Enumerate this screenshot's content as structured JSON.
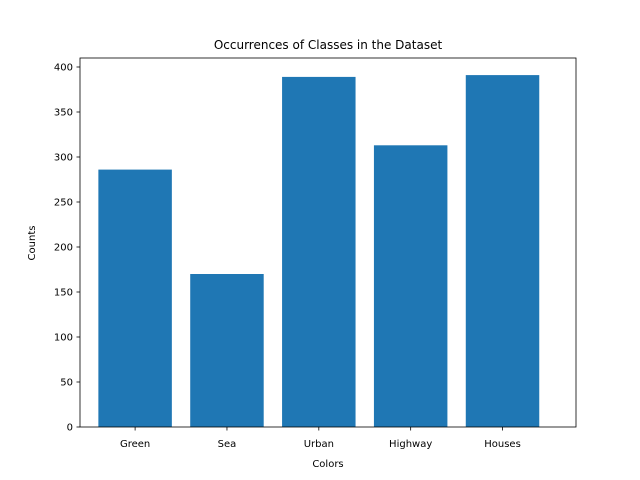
{
  "chart_data": {
    "type": "bar",
    "title": "Occurrences of Classes in the Dataset",
    "xlabel": "Colors",
    "ylabel": "Counts",
    "categories": [
      "Green",
      "Sea",
      "Urban",
      "Highway",
      "Houses"
    ],
    "values": [
      286,
      170,
      389,
      313,
      391
    ],
    "ylim": [
      0,
      410
    ],
    "yticks": [
      0,
      50,
      100,
      150,
      200,
      250,
      300,
      350,
      400
    ],
    "bar_color": "#1f77b4",
    "grid": false,
    "legend": "none"
  }
}
